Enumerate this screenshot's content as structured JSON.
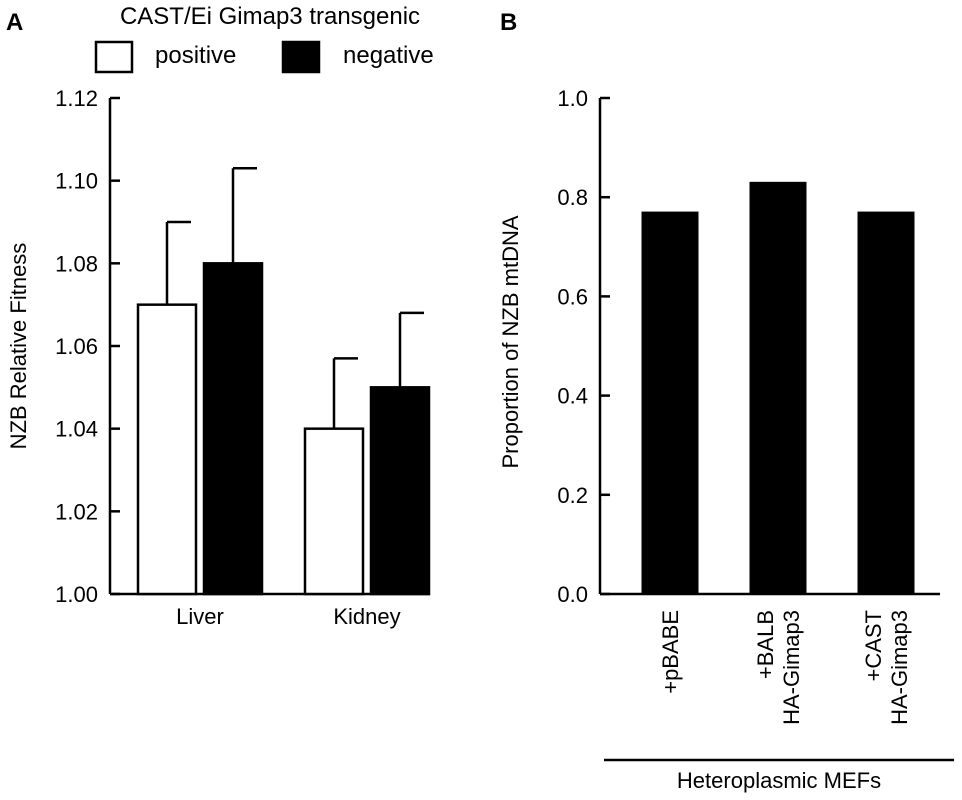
{
  "panel_a": {
    "letter": "A"
  },
  "panel_b": {
    "letter": "B"
  },
  "chart_data": [
    {
      "type": "bar",
      "legend_title": "CAST/Ei Gimap3 transgenic",
      "legend_position": "top",
      "categories": [
        "Liver",
        "Kidney"
      ],
      "series": [
        {
          "name": "positive",
          "values": [
            1.07,
            1.04
          ],
          "errors": [
            0.02,
            0.017
          ],
          "fill": "#ffffff"
        },
        {
          "name": "negative",
          "values": [
            1.08,
            1.05
          ],
          "errors": [
            0.023,
            0.018
          ],
          "fill": "#000000"
        }
      ],
      "ylabel": "NZB Relative Fitness",
      "xlabel": "",
      "ylim": [
        1.0,
        1.12
      ],
      "yticks": [
        "1.00",
        "1.02",
        "1.04",
        "1.06",
        "1.08",
        "1.10",
        "1.12"
      ],
      "grid": false
    },
    {
      "type": "bar",
      "categories": [
        [
          "+pBABE"
        ],
        [
          "+BALB",
          "HA-Gimap3"
        ],
        [
          "+CAST",
          "HA-Gimap3"
        ]
      ],
      "values": [
        0.77,
        0.83,
        0.77
      ],
      "fill": "#000000",
      "ylabel": "Proportion of NZB mtDNA",
      "xlabel": "Heteroplasmic MEFs",
      "ylim": [
        0.0,
        1.0
      ],
      "yticks": [
        "0.0",
        "0.2",
        "0.4",
        "0.6",
        "0.8",
        "1.0"
      ],
      "grid": false
    }
  ]
}
